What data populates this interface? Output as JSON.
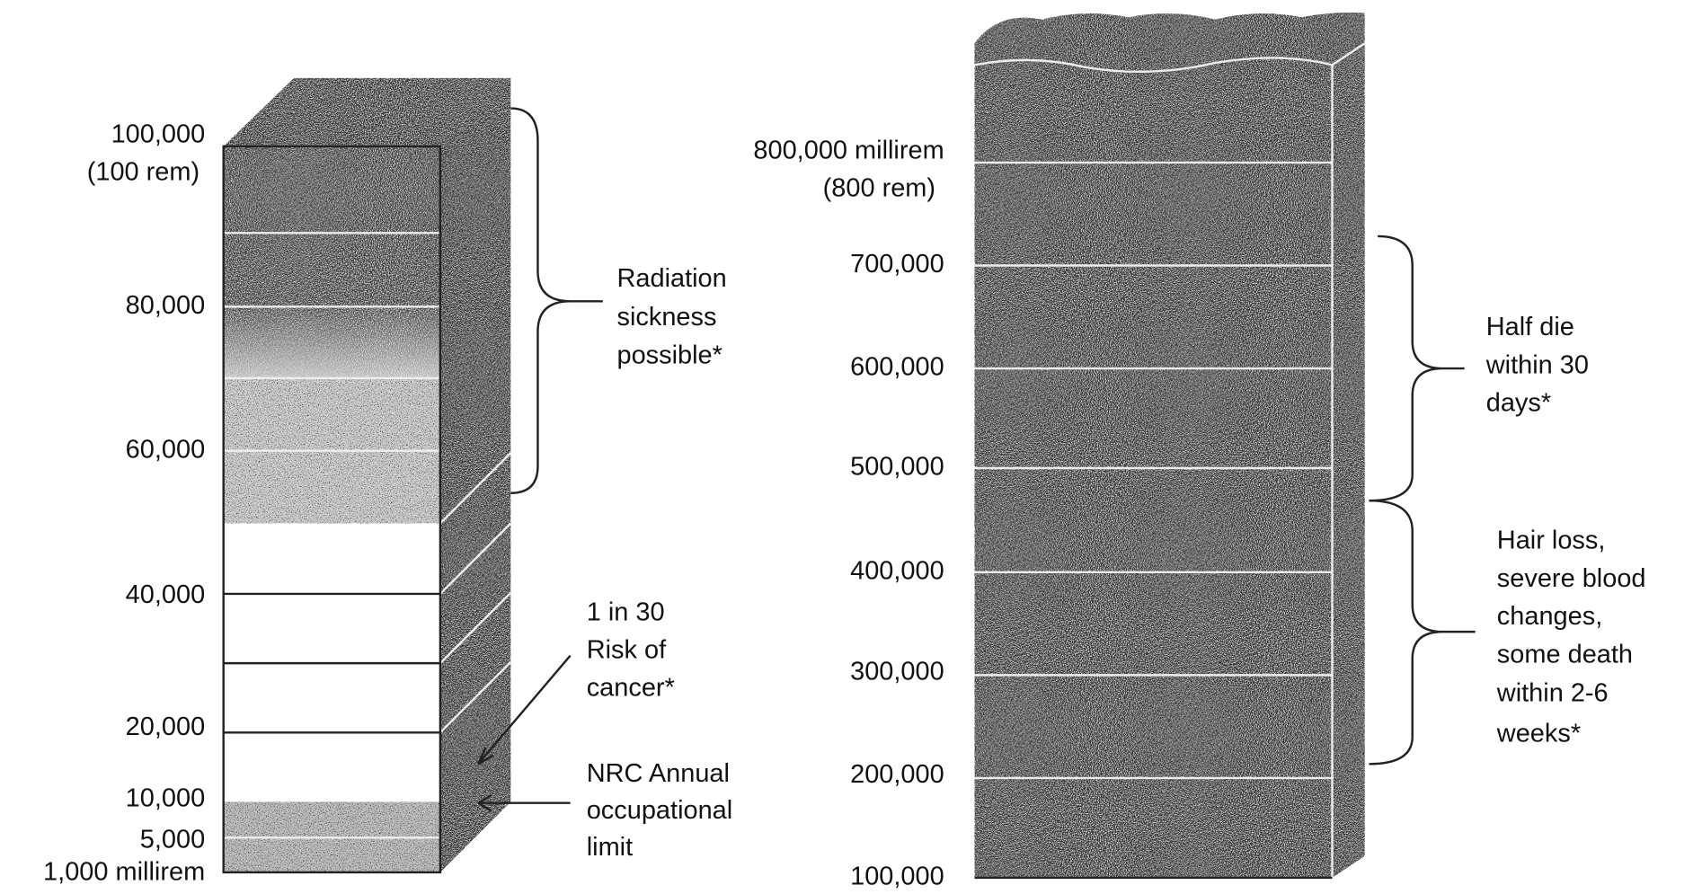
{
  "left_column": {
    "labels": [
      "100,000",
      "(100 rem)",
      "80,000",
      "60,000",
      "40,000",
      "20,000",
      "10,000",
      "5,000",
      "1,000 millirem"
    ],
    "annotations": [
      {
        "lines": [
          "Radiation",
          "sickness",
          "possible*"
        ]
      },
      {
        "lines": [
          "1 in 30",
          "Risk of",
          "cancer*"
        ]
      },
      {
        "lines": [
          "NRC Annual",
          "occupational",
          "limit"
        ]
      }
    ]
  },
  "right_column": {
    "labels": [
      "800,000 millirem",
      "(800 rem)",
      "700,000",
      "600,000",
      "500,000",
      "400,000",
      "300,000",
      "200,000",
      "100,000"
    ],
    "annotations": [
      {
        "lines": [
          "Half die",
          "within 30",
          "days*"
        ]
      },
      {
        "lines": [
          "Hair loss,",
          "severe blood",
          "changes,",
          "some death",
          "within 2-6",
          "weeks*"
        ]
      }
    ]
  }
}
